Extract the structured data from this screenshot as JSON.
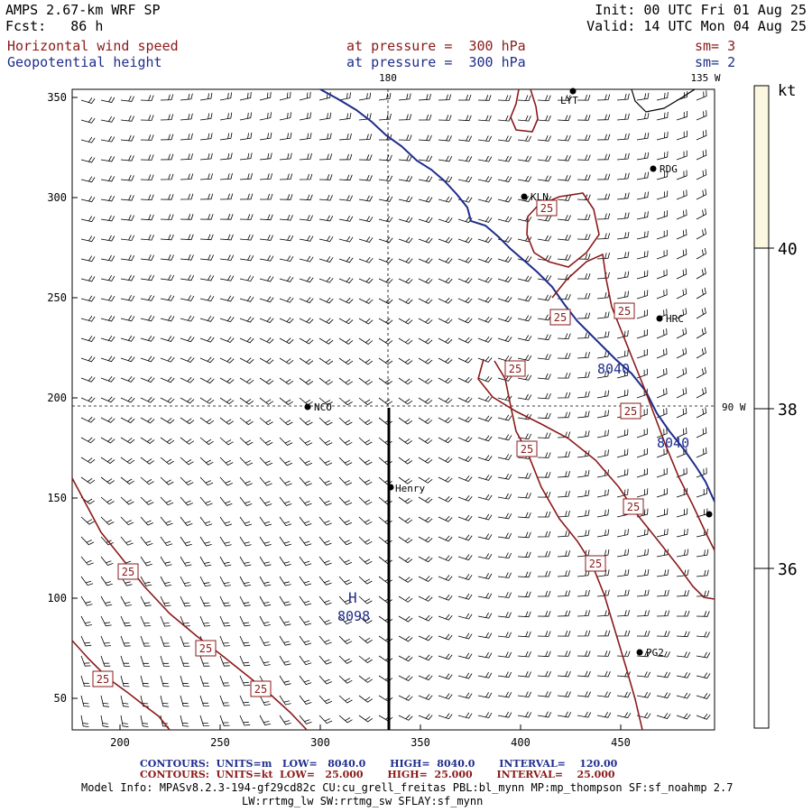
{
  "header": {
    "title": "AMPS 2.67-km WRF SP",
    "fcst": "Fcst:   86 h",
    "init": "Init: 00 UTC Fri 01 Aug 25",
    "valid": "Valid: 14 UTC Mon 04 Aug 25",
    "field1": {
      "name": "Horizontal wind speed",
      "level": "at pressure =  300 hPa",
      "sm": "sm= 3"
    },
    "field2": {
      "name": "Geopotential height",
      "level": "at pressure =  300 hPa",
      "sm": "sm= 2"
    }
  },
  "axes": {
    "x_ticks": [
      "200",
      "250",
      "300",
      "350",
      "400",
      "450"
    ],
    "y_ticks": [
      "350",
      "300",
      "250",
      "200",
      "150",
      "100",
      "50"
    ],
    "meridian_top": "180",
    "meridian_right_top": "135 W",
    "parallel_right": "90 W"
  },
  "stations": [
    {
      "label": "NCO"
    },
    {
      "label": "Henry"
    },
    {
      "label": "KLN"
    },
    {
      "label": "RDG"
    },
    {
      "label": "HRC"
    },
    {
      "label": "PG2"
    },
    {
      "label": "LYT"
    }
  ],
  "contour_labels": {
    "height": [
      "8040",
      "8040"
    ],
    "high_marker": "H",
    "high_value": "8098",
    "speed": [
      "25",
      "25",
      "25",
      "25",
      "25",
      "25",
      "25",
      "25",
      "25",
      "25",
      "25",
      "25"
    ]
  },
  "colorbar": {
    "unit": "kt",
    "ticks": [
      "40",
      "38",
      "36"
    ],
    "colors": {
      "top": "#fbf7e0",
      "rest": "#ffffff"
    }
  },
  "footer": {
    "line1": "CONTOURS:  UNITS=m   LOW=   8040.0       HIGH=  8040.0       INTERVAL=    120.00",
    "line2": "CONTOURS:  UNITS=kt  LOW=   25.000       HIGH=  25.000       INTERVAL=    25.000",
    "model1": "Model Info: MPASv8.2.3-194-gf29cd82c CU:cu_grell_freitas PBL:bl_mynn MP:mp_thompson SF:sf_noahmp 2.7",
    "model2": "LW:rrtmg_lw SW:rrtmg_sw SFLAY:sf_mynn"
  },
  "colors": {
    "height_contour": "#1f2d8c",
    "speed_contour": "#8b1a1a",
    "barbs": "#000000"
  }
}
